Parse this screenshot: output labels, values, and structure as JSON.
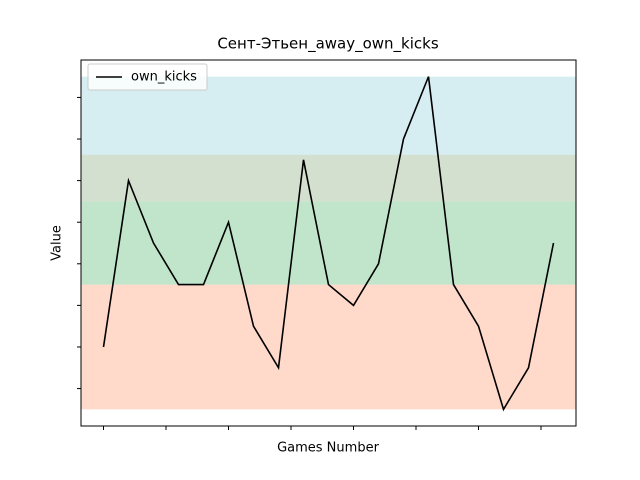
{
  "chart_data": {
    "type": "line",
    "title": "Сент-Этьен_away_own_kicks",
    "xlabel": "Games Number",
    "ylabel": "Value",
    "x": [
      0,
      1,
      2,
      3,
      4,
      5,
      6,
      7,
      8,
      9,
      10,
      11,
      12,
      13,
      14,
      15,
      16,
      17,
      18
    ],
    "series": [
      {
        "name": "own_kicks",
        "color": "#000000",
        "values": [
          4,
          12,
          9,
          7,
          7,
          10,
          5,
          3,
          13,
          7,
          6,
          8,
          14,
          17,
          7,
          5,
          1,
          3,
          9
        ]
      }
    ],
    "bands": [
      {
        "range": [
          1,
          7
        ],
        "color": "#ffd9c9"
      },
      {
        "range": [
          7,
          11
        ],
        "color": "#c0e5cb"
      },
      {
        "range": [
          11,
          13.25
        ],
        "color": "#d3e0cf"
      },
      {
        "range": [
          13.25,
          17
        ],
        "color": "#d6edf2"
      }
    ],
    "xlim": [
      -0.9,
      18.9
    ],
    "ylim": [
      0.2,
      17.8
    ],
    "xticks": [
      0,
      2.5,
      5,
      7.5,
      10,
      12.5,
      15,
      17.5
    ],
    "yticks": [
      2,
      4,
      6,
      8,
      10,
      12,
      14,
      16
    ],
    "legend": "upper left"
  }
}
